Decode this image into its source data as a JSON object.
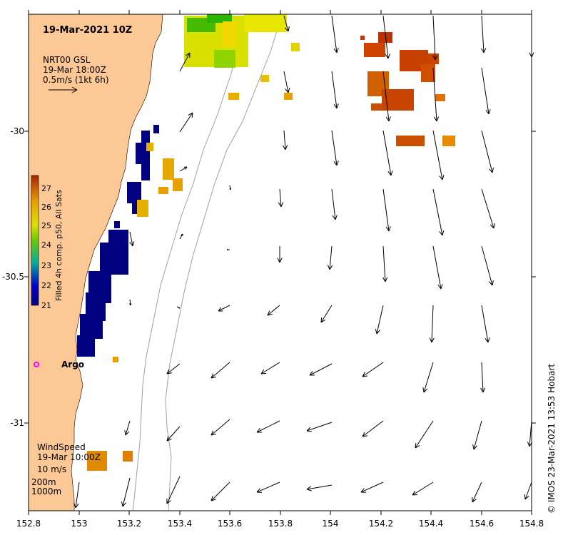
{
  "map": {
    "title": "19-Mar-2021 10Z",
    "source_label": "NRT00 GSL",
    "source_time": "19-Mar 18:00Z",
    "scale_arrow_label": "0.5m/s (1kt 6h)",
    "colorbar_title": "Filled 4h comp. p50, All Sats",
    "colorbar_ticks": [
      "27",
      "26",
      "25",
      "24",
      "23",
      "22",
      "21"
    ],
    "wind_label": "WindSpeed",
    "wind_time": "19-Mar 10:00Z",
    "wind_scale_label": "10 m/s",
    "isobath_shallow": "200m",
    "isobath_deep": "1000m",
    "argo_label": "Argo",
    "credit": "© IMOS 23-Mar-2021 13:53 Hobart",
    "x_ticks": [
      "152.8",
      "153",
      "153.2",
      "153.4",
      "153.6",
      "153.8",
      "154",
      "154.2",
      "154.4",
      "154.6",
      "154.8"
    ],
    "y_ticks": [
      "-30",
      "-30.5",
      "-31"
    ]
  },
  "colors": {
    "land": "#fcc895",
    "ocean": "#ffffff",
    "isobath": "#a0a0a0",
    "cold_sst": "#000080",
    "argo": "#ff00ff",
    "sst_warm": "#cc4400",
    "sst_mid": "#e6a000",
    "sst_yellow": "#dde000",
    "sst_green": "#66cc00"
  }
}
